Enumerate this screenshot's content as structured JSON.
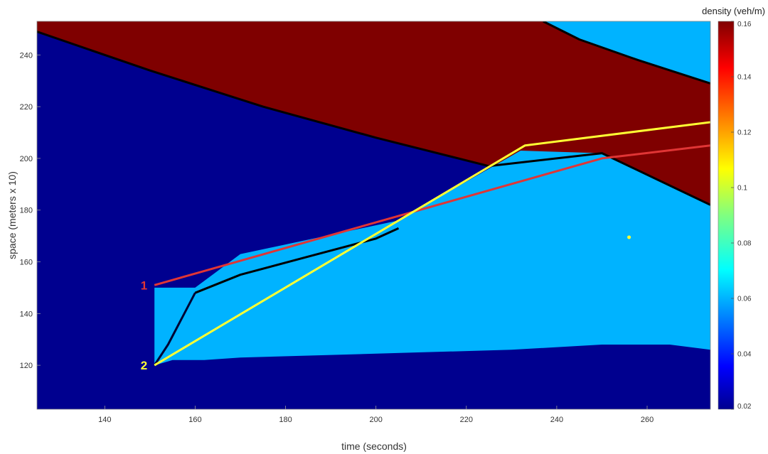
{
  "chart_data": {
    "type": "heatmap",
    "xlabel": "time (seconds)",
    "ylabel": "space (meters x 10)",
    "xlim": [
      125,
      274
    ],
    "ylim": [
      103,
      253
    ],
    "xticks": [
      140,
      160,
      180,
      200,
      220,
      240,
      260
    ],
    "yticks": [
      120,
      140,
      160,
      180,
      200,
      220,
      240
    ],
    "grid": false,
    "colorbar": {
      "label": "density (veh/m)",
      "range": [
        0.02,
        0.16
      ],
      "ticks": [
        0.02,
        0.04,
        0.06,
        0.08,
        0.1,
        0.12,
        0.14,
        0.16
      ],
      "tick_labels": [
        "0.02",
        "0.04",
        "0.06",
        "0.08",
        "0.1",
        "0.12",
        "0.14",
        "0.16"
      ],
      "colormap": "jet"
    },
    "regions": [
      {
        "name": "jam",
        "density": 0.16,
        "color": "#7f0000",
        "polygon": [
          [
            125,
            253
          ],
          [
            125,
            249
          ],
          [
            150,
            234
          ],
          [
            175,
            220
          ],
          [
            200,
            208
          ],
          [
            225,
            197
          ],
          [
            250,
            202
          ],
          [
            274,
            182
          ],
          [
            274,
            229
          ],
          [
            258,
            238
          ],
          [
            245,
            246
          ],
          [
            237,
            253
          ]
        ]
      },
      {
        "name": "discharge",
        "density": 0.06,
        "color": "#00b3ff",
        "polygon": [
          [
            237,
            253
          ],
          [
            274,
            253
          ],
          [
            274,
            229
          ],
          [
            258,
            238
          ],
          [
            245,
            246
          ]
        ]
      },
      {
        "name": "discharge",
        "density": 0.06,
        "color": "#00b3ff",
        "polygon": [
          [
            151,
            120
          ],
          [
            155,
            122
          ],
          [
            162,
            122
          ],
          [
            170,
            123
          ],
          [
            190,
            124
          ],
          [
            210,
            125
          ],
          [
            230,
            126
          ],
          [
            250,
            128
          ],
          [
            265,
            128
          ],
          [
            274,
            126
          ],
          [
            274,
            182
          ],
          [
            250,
            202
          ],
          [
            232,
            203
          ],
          [
            205,
            176
          ],
          [
            170,
            163
          ],
          [
            160,
            150
          ],
          [
            151,
            150
          ]
        ]
      }
    ],
    "boundaries": [
      {
        "name": "jam-upper-boundary",
        "color": "#000000",
        "points": [
          [
            125,
            249
          ],
          [
            150,
            234
          ],
          [
            175,
            220
          ],
          [
            200,
            208
          ],
          [
            225,
            197
          ],
          [
            250,
            202
          ],
          [
            274,
            182
          ]
        ]
      },
      {
        "name": "jam-lower-boundary",
        "color": "#000000",
        "points": [
          [
            237,
            253
          ],
          [
            245,
            246
          ],
          [
            258,
            238
          ],
          [
            274,
            229
          ]
        ]
      },
      {
        "name": "wave-boundary",
        "color": "#000000",
        "points": [
          [
            160,
            148
          ],
          [
            170,
            155
          ],
          [
            185,
            162
          ],
          [
            200,
            169
          ],
          [
            205,
            173
          ]
        ]
      },
      {
        "name": "wave-boundary-lower",
        "color": "#000033",
        "points": [
          [
            160,
            148
          ],
          [
            154,
            128
          ],
          [
            151,
            120
          ]
        ]
      }
    ],
    "trajectories": [
      {
        "name": "1",
        "color": "#e03535",
        "points": [
          [
            151,
            151
          ],
          [
            250,
            200
          ],
          [
            274,
            205
          ]
        ]
      },
      {
        "name": "2",
        "color": "#ffff33",
        "points": [
          [
            151,
            120
          ],
          [
            233,
            205
          ],
          [
            274,
            214
          ]
        ]
      }
    ],
    "marker": {
      "x": 256,
      "y": 169.5,
      "color": "#ffff33"
    }
  }
}
